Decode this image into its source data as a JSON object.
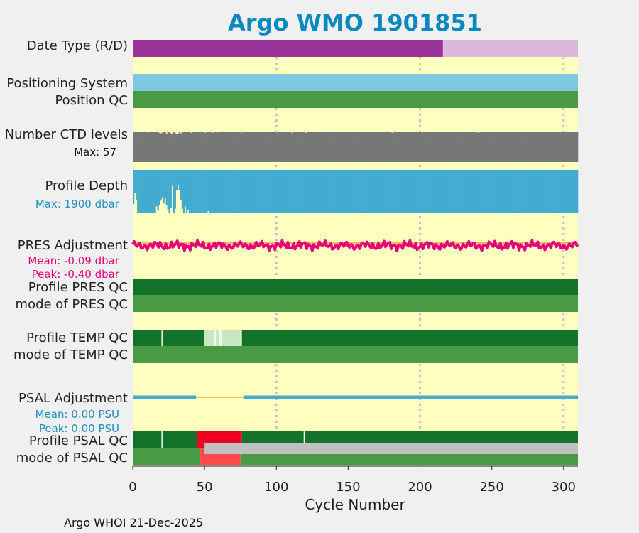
{
  "title": "Argo WMO 1901851",
  "footer": "Argo WHOI 21-Dec-2025",
  "colors": {
    "background": "#f0f0f0",
    "panel": "#ffffc0",
    "title": "#0a88c0",
    "dataType_D": "#993399",
    "dataType_R": "#dbb8db",
    "positioning": "#7fc7df",
    "qc_good": "#4a9a45",
    "qc_dark": "#14732a",
    "qc_light": "#c8e6c0",
    "qc_bad": "#ee0022",
    "qc_bad_light": "#ff4a4a",
    "qc_gray": "#c0c0c0",
    "ctd": "#777777",
    "depth": "#43abd0",
    "pres_adj": "#e6007e",
    "adj_zero": "#e8a030",
    "psal_adj": "#43abd0",
    "grid": "#c0c0d0",
    "text": "#222222",
    "info_blue": "#1d8fc1",
    "info_magenta": "#e6007e"
  },
  "row_labels": {
    "data_type": "Date Type (R/D)",
    "positioning": "Positioning System",
    "position_qc": "Position QC",
    "ctd_levels": "Number CTD levels",
    "ctd_max": "Max: 57",
    "profile_depth": "Profile Depth",
    "depth_max": "Max: 1900 dbar",
    "pres_adj": "PRES Adjustment",
    "pres_mean": "Mean: -0.09 dbar",
    "pres_peak": "Peak: -0.40 dbar",
    "profile_pres_qc": "Profile PRES QC",
    "mode_pres_qc": "mode of PRES QC",
    "profile_temp_qc": "Profile TEMP QC",
    "mode_temp_qc": "mode of TEMP QC",
    "psal_adj": "PSAL Adjustment",
    "psal_mean": "Mean: 0.00 PSU",
    "psal_peak": "Peak: 0.00 PSU",
    "profile_psal_qc": "Profile PSAL QC",
    "mode_psal_qc": "mode of PSAL QC"
  },
  "chart_data": {
    "type": "timeline-panels",
    "title": "Argo WMO 1901851",
    "xlabel": "Cycle Number",
    "xlim": [
      0,
      310
    ],
    "xticks": [
      0,
      50,
      100,
      150,
      200,
      250,
      300
    ],
    "grid_x": [
      100,
      200,
      300
    ],
    "data_type": [
      {
        "from": 0,
        "to": 216,
        "mode": "D"
      },
      {
        "from": 216,
        "to": 310,
        "mode": "R"
      }
    ],
    "positioning_system": [
      {
        "from": 0,
        "to": 310,
        "value": "GPS"
      }
    ],
    "position_qc": [
      {
        "from": 0,
        "to": 310,
        "flag": "good"
      }
    ],
    "ctd_levels": {
      "max": 57,
      "typical": 57,
      "dips": [
        [
          10,
          56
        ],
        [
          18,
          56
        ],
        [
          19,
          55
        ],
        [
          20,
          56
        ],
        [
          23,
          54
        ],
        [
          26,
          55
        ],
        [
          27,
          54
        ],
        [
          29,
          55
        ],
        [
          30,
          53
        ],
        [
          31,
          53
        ],
        [
          33,
          55
        ],
        [
          40,
          56
        ],
        [
          50,
          56
        ],
        [
          55,
          56
        ],
        [
          58,
          56
        ],
        [
          75,
          56
        ],
        [
          100,
          56
        ],
        [
          110,
          56
        ],
        [
          120,
          56
        ],
        [
          180,
          56
        ],
        [
          201,
          56
        ],
        [
          240,
          56
        ]
      ]
    },
    "profile_depth": {
      "max_dbar": 1900,
      "typical": 1900,
      "shallow_cycles": [
        [
          0,
          1500
        ],
        [
          1,
          1000
        ],
        [
          2,
          1300
        ],
        [
          16,
          1600
        ],
        [
          17,
          1750
        ],
        [
          18,
          1550
        ],
        [
          19,
          1350
        ],
        [
          20,
          1200
        ],
        [
          21,
          1450
        ],
        [
          22,
          1250
        ],
        [
          23,
          1550
        ],
        [
          24,
          1750
        ],
        [
          26,
          1650
        ],
        [
          27,
          700
        ],
        [
          29,
          1700
        ],
        [
          30,
          900
        ],
        [
          31,
          650
        ],
        [
          32,
          900
        ],
        [
          33,
          1300
        ],
        [
          34,
          1700
        ],
        [
          36,
          1600
        ],
        [
          38,
          1750
        ],
        [
          52,
          1800
        ]
      ]
    },
    "pres_adjustment": {
      "unit": "dbar",
      "mean": -0.09,
      "peak": -0.4,
      "ylim": [
        -0.5,
        0.3
      ]
    },
    "profile_pres_qc": [
      {
        "from": 0,
        "to": 310,
        "grade": "A"
      }
    ],
    "mode_pres_qc": [
      {
        "from": 0,
        "to": 310,
        "flag": 1
      }
    ],
    "profile_temp_qc": [
      {
        "from": 0,
        "to": 50,
        "grade": "A"
      },
      {
        "from": 50,
        "to": 76,
        "grade": "B"
      },
      {
        "from": 76,
        "to": 310,
        "grade": "A"
      }
    ],
    "temp_qc_gaps": [
      20,
      57,
      60,
      61,
      75
    ],
    "mode_temp_qc": [
      {
        "from": 0,
        "to": 310,
        "flag": 1
      }
    ],
    "psal_adjustment": {
      "unit": "PSU",
      "mean": 0.0,
      "peak": 0.0,
      "segments": [
        {
          "from": 0,
          "to": 44,
          "kind": "adjusted"
        },
        {
          "from": 44,
          "to": 77,
          "kind": "zero"
        },
        {
          "from": 77,
          "to": 310,
          "kind": "adjusted"
        }
      ]
    },
    "profile_psal_qc": [
      {
        "from": 0,
        "to": 45,
        "grade": "A"
      },
      {
        "from": 45,
        "to": 76,
        "grade": "F"
      },
      {
        "from": 76,
        "to": 310,
        "grade": "A"
      }
    ],
    "psal_qc_gaps": [
      20,
      119
    ],
    "mode_psal_qc": [
      {
        "from": 0,
        "to": 47,
        "flag": 1
      },
      {
        "from": 47,
        "to": 75,
        "flag": 4
      },
      {
        "from": 75,
        "to": 310,
        "flag": 1
      }
    ],
    "psal_gray_overlay": {
      "from": 50,
      "to": 310
    }
  }
}
